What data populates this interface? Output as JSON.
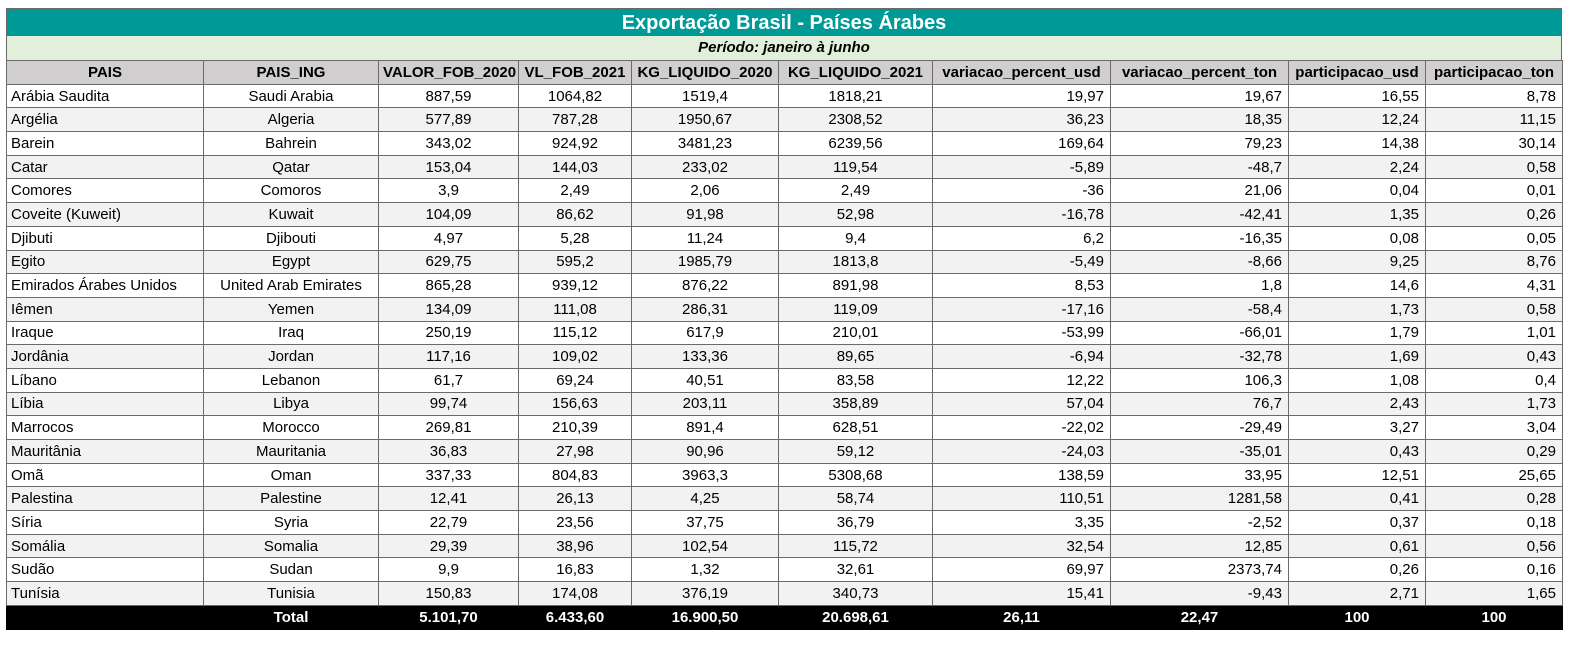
{
  "title": "Exportação Brasil - Países Árabes",
  "period": "Período: janeiro à junho",
  "columns": [
    "PAIS",
    "PAIS_ING",
    "VALOR_FOB_2020",
    "VL_FOB_2021",
    "KG_LIQUIDO_2020",
    "KG_LIQUIDO_2021",
    "variacao_percent_usd",
    "variacao_percent_ton",
    "participacao_usd",
    "participacao_ton"
  ],
  "rows": [
    [
      "Arábia Saudita",
      "Saudi Arabia",
      "887,59",
      "1064,82",
      "1519,4",
      "1818,21",
      "19,97",
      "19,67",
      "16,55",
      "8,78"
    ],
    [
      "Argélia",
      "Algeria",
      "577,89",
      "787,28",
      "1950,67",
      "2308,52",
      "36,23",
      "18,35",
      "12,24",
      "11,15"
    ],
    [
      "Barein",
      "Bahrein",
      "343,02",
      "924,92",
      "3481,23",
      "6239,56",
      "169,64",
      "79,23",
      "14,38",
      "30,14"
    ],
    [
      "Catar",
      "Qatar",
      "153,04",
      "144,03",
      "233,02",
      "119,54",
      "-5,89",
      "-48,7",
      "2,24",
      "0,58"
    ],
    [
      "Comores",
      "Comoros",
      "3,9",
      "2,49",
      "2,06",
      "2,49",
      "-36",
      "21,06",
      "0,04",
      "0,01"
    ],
    [
      "Coveite (Kuweit)",
      "Kuwait",
      "104,09",
      "86,62",
      "91,98",
      "52,98",
      "-16,78",
      "-42,41",
      "1,35",
      "0,26"
    ],
    [
      "Djibuti",
      "Djibouti",
      "4,97",
      "5,28",
      "11,24",
      "9,4",
      "6,2",
      "-16,35",
      "0,08",
      "0,05"
    ],
    [
      "Egito",
      "Egypt",
      "629,75",
      "595,2",
      "1985,79",
      "1813,8",
      "-5,49",
      "-8,66",
      "9,25",
      "8,76"
    ],
    [
      "Emirados Árabes Unidos",
      "United Arab Emirates",
      "865,28",
      "939,12",
      "876,22",
      "891,98",
      "8,53",
      "1,8",
      "14,6",
      "4,31"
    ],
    [
      "Iêmen",
      "Yemen",
      "134,09",
      "111,08",
      "286,31",
      "119,09",
      "-17,16",
      "-58,4",
      "1,73",
      "0,58"
    ],
    [
      "Iraque",
      "Iraq",
      "250,19",
      "115,12",
      "617,9",
      "210,01",
      "-53,99",
      "-66,01",
      "1,79",
      "1,01"
    ],
    [
      "Jordânia",
      "Jordan",
      "117,16",
      "109,02",
      "133,36",
      "89,65",
      "-6,94",
      "-32,78",
      "1,69",
      "0,43"
    ],
    [
      "Líbano",
      "Lebanon",
      "61,7",
      "69,24",
      "40,51",
      "83,58",
      "12,22",
      "106,3",
      "1,08",
      "0,4"
    ],
    [
      "Líbia",
      "Libya",
      "99,74",
      "156,63",
      "203,11",
      "358,89",
      "57,04",
      "76,7",
      "2,43",
      "1,73"
    ],
    [
      "Marrocos",
      "Morocco",
      "269,81",
      "210,39",
      "891,4",
      "628,51",
      "-22,02",
      "-29,49",
      "3,27",
      "3,04"
    ],
    [
      "Mauritânia",
      "Mauritania",
      "36,83",
      "27,98",
      "90,96",
      "59,12",
      "-24,03",
      "-35,01",
      "0,43",
      "0,29"
    ],
    [
      "Omã",
      "Oman",
      "337,33",
      "804,83",
      "3963,3",
      "5308,68",
      "138,59",
      "33,95",
      "12,51",
      "25,65"
    ],
    [
      "Palestina",
      "Palestine",
      "12,41",
      "26,13",
      "4,25",
      "58,74",
      "110,51",
      "1281,58",
      "0,41",
      "0,28"
    ],
    [
      "Síria",
      "Syria",
      "22,79",
      "23,56",
      "37,75",
      "36,79",
      "3,35",
      "-2,52",
      "0,37",
      "0,18"
    ],
    [
      "Somália",
      "Somalia",
      "29,39",
      "38,96",
      "102,54",
      "115,72",
      "32,54",
      "12,85",
      "0,61",
      "0,56"
    ],
    [
      "Sudão",
      "Sudan",
      "9,9",
      "16,83",
      "1,32",
      "32,61",
      "69,97",
      "2373,74",
      "0,26",
      "0,16"
    ],
    [
      "Tunísia",
      "Tunisia",
      "150,83",
      "174,08",
      "376,19",
      "340,73",
      "15,41",
      "-9,43",
      "2,71",
      "1,65"
    ]
  ],
  "total": [
    "",
    "Total",
    "5.101,70",
    "6.433,60",
    "16.900,50",
    "20.698,61",
    "26,11",
    "22,47",
    "100",
    "100"
  ]
}
